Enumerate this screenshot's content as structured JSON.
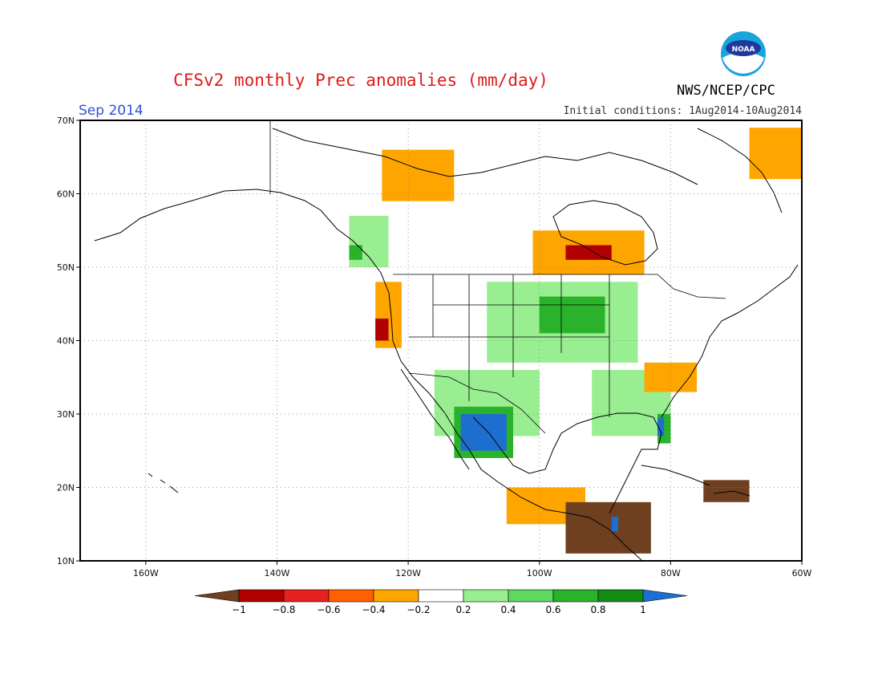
{
  "header": {
    "title": "CFSv2 monthly Prec anomalies (mm/day)",
    "month": "Sep 2014",
    "initial_conditions": "Initial conditions: 1Aug2014-10Aug2014",
    "agency": "NWS/NCEP/CPC",
    "logo_text": "NOAA"
  },
  "map": {
    "lon_range": [
      -170,
      -60
    ],
    "lat_range": [
      10,
      70
    ],
    "lon_ticks": [
      {
        "value": -160,
        "label": "160W"
      },
      {
        "value": -140,
        "label": "140W"
      },
      {
        "value": -120,
        "label": "120W"
      },
      {
        "value": -100,
        "label": "100W"
      },
      {
        "value": -80,
        "label": "80W"
      },
      {
        "value": -60,
        "label": "60W"
      }
    ],
    "lat_ticks": [
      {
        "value": 10,
        "label": "10N"
      },
      {
        "value": 20,
        "label": "20N"
      },
      {
        "value": 30,
        "label": "30N"
      },
      {
        "value": 40,
        "label": "40N"
      },
      {
        "value": 50,
        "label": "50N"
      },
      {
        "value": 60,
        "label": "60N"
      },
      {
        "value": 70,
        "label": "70N"
      }
    ],
    "gridlines": "dotted",
    "anomaly_regions": [
      {
        "name": "Pacific Northwest coast",
        "level": "wet",
        "lon": [
          -129,
          -123
        ],
        "lat": [
          50,
          57
        ]
      },
      {
        "name": "NW coast core",
        "level": "very-wet",
        "lon": [
          -129,
          -127
        ],
        "lat": [
          51,
          53
        ]
      },
      {
        "name": "Oregon/N California coast",
        "level": "dry",
        "lon": [
          -125,
          -121
        ],
        "lat": [
          39,
          48
        ]
      },
      {
        "name": "N California core",
        "level": "very-dry",
        "lon": [
          -125,
          -123
        ],
        "lat": [
          40,
          43
        ]
      },
      {
        "name": "NW Canada",
        "level": "dry",
        "lon": [
          -124,
          -113
        ],
        "lat": [
          59,
          66
        ]
      },
      {
        "name": "Hudson Bay south",
        "level": "dry",
        "lon": [
          -101,
          -84
        ],
        "lat": [
          49,
          55
        ]
      },
      {
        "name": "Hudson Bay core",
        "level": "very-dry",
        "lon": [
          -96,
          -89
        ],
        "lat": [
          51,
          53
        ]
      },
      {
        "name": "Northern Plains / Upper Midwest",
        "level": "wet",
        "lon": [
          -108,
          -85
        ],
        "lat": [
          37,
          48
        ]
      },
      {
        "name": "Upper Midwest core",
        "level": "very-wet",
        "lon": [
          -100,
          -90
        ],
        "lat": [
          41,
          46
        ]
      },
      {
        "name": "Southwest US / Mexico",
        "level": "wet",
        "lon": [
          -116,
          -100
        ],
        "lat": [
          27,
          36
        ]
      },
      {
        "name": "NW Mexico",
        "level": "very-wet",
        "lon": [
          -113,
          -104
        ],
        "lat": [
          24,
          31
        ]
      },
      {
        "name": "Southeast US",
        "level": "wet",
        "lon": [
          -92,
          -80
        ],
        "lat": [
          27,
          36
        ]
      },
      {
        "name": "Florida",
        "level": "very-wet",
        "lon": [
          -82,
          -80
        ],
        "lat": [
          26,
          30
        ]
      },
      {
        "name": "Carolinas",
        "level": "dry",
        "lon": [
          -84,
          -76
        ],
        "lat": [
          33,
          37
        ]
      },
      {
        "name": "Southern Mexico",
        "level": "dry",
        "lon": [
          -105,
          -93
        ],
        "lat": [
          15,
          20
        ]
      },
      {
        "name": "Central America",
        "level": "extreme-dry",
        "lon": [
          -96,
          -83
        ],
        "lat": [
          11,
          18
        ]
      },
      {
        "name": "Greenland south",
        "level": "dry",
        "lon": [
          -68,
          -60
        ],
        "lat": [
          62,
          69
        ]
      },
      {
        "name": "Caribbean",
        "level": "extreme-dry",
        "lon": [
          -75,
          -68
        ],
        "lat": [
          18,
          21
        ]
      }
    ]
  },
  "colorbar": {
    "labels": [
      "−1",
      "−0.8",
      "−0.6",
      "−0.4",
      "−0.2",
      "0.2",
      "0.4",
      "0.6",
      "0.8",
      "1"
    ],
    "colors": [
      "#6e4020",
      "#b00000",
      "#e82020",
      "#ff6000",
      "#ffa500",
      "#ffffff",
      "#98ee90",
      "#5ed85e",
      "#2bb22b",
      "#148c14",
      "#1e6ed0"
    ]
  }
}
